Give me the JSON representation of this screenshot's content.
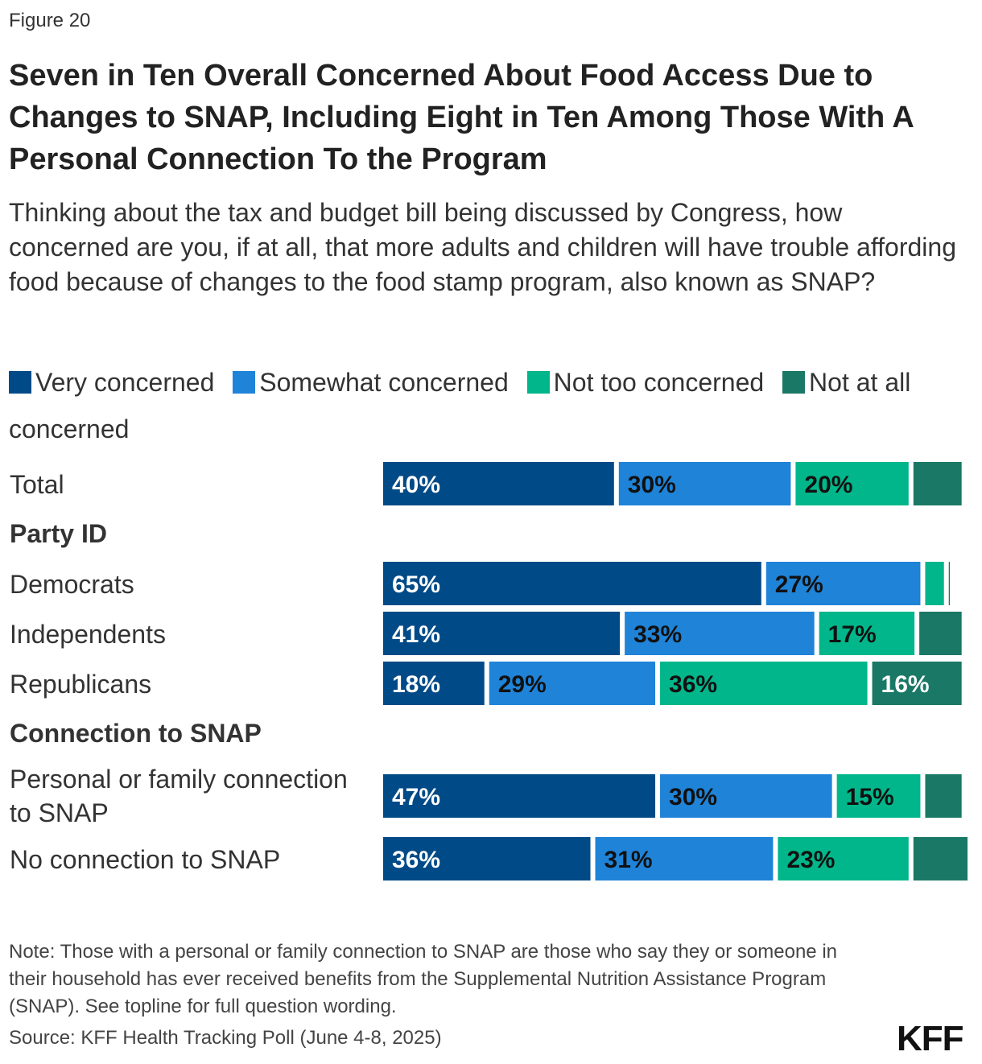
{
  "figure_label": "Figure 20",
  "title": "Seven in Ten Overall Concerned About Food Access Due to Changes to SNAP, Including Eight in Ten Among Those With A Personal Connection To the Program",
  "subtitle": "Thinking about the tax and budget bill being discussed by Congress, how concerned are you, if at all, that more adults and children will have trouble affording food because of changes to the food stamp program, also known as SNAP?",
  "note": "Note: Those with a personal or family connection to SNAP are those who say they or someone in their household has ever received benefits from the Supplemental Nutrition Assistance Program (SNAP). See topline for full question wording.",
  "source": "Source: KFF Health Tracking Poll (June 4-8, 2025)",
  "logo": "KFF",
  "colors": {
    "very": "#004a87",
    "somewhat": "#1f83d8",
    "not_too": "#00b68a",
    "not_at_all": "#1a7866",
    "label_light": "#ffffff",
    "label_dark": "#111111"
  },
  "chart_data": {
    "type": "bar",
    "orientation": "horizontal",
    "stacked": true,
    "legend_position": "top",
    "series_names": [
      "Very concerned",
      "Somewhat concerned",
      "Not too concerned",
      "Not at all concerned"
    ],
    "groups": [
      {
        "group": "",
        "rows": [
          "Total"
        ]
      },
      {
        "group": "Party ID",
        "rows": [
          "Democrats",
          "Independents",
          "Republicans"
        ]
      },
      {
        "group": "Connection to SNAP",
        "rows": [
          "Personal or family connection to SNAP",
          "No connection to SNAP"
        ]
      }
    ],
    "categories": [
      "Total",
      "Democrats",
      "Independents",
      "Republicans",
      "Personal or family connection to SNAP",
      "No connection to SNAP"
    ],
    "series": [
      {
        "name": "Very concerned",
        "values": [
          40,
          65,
          41,
          18,
          47,
          36
        ]
      },
      {
        "name": "Somewhat concerned",
        "values": [
          30,
          27,
          33,
          29,
          30,
          31
        ]
      },
      {
        "name": "Not too concerned",
        "values": [
          20,
          4,
          17,
          36,
          15,
          23
        ]
      },
      {
        "name": "Not at all concerned",
        "values": [
          9,
          1,
          8,
          16,
          7,
          10
        ]
      }
    ],
    "data_labels": [
      [
        "40%",
        "30%",
        "20%",
        ""
      ],
      [
        "65%",
        "27%",
        "",
        ""
      ],
      [
        "41%",
        "33%",
        "17%",
        ""
      ],
      [
        "18%",
        "29%",
        "36%",
        "16%"
      ],
      [
        "47%",
        "30%",
        "15%",
        ""
      ],
      [
        "36%",
        "31%",
        "23%",
        ""
      ]
    ],
    "xlim": [
      0,
      100
    ]
  }
}
